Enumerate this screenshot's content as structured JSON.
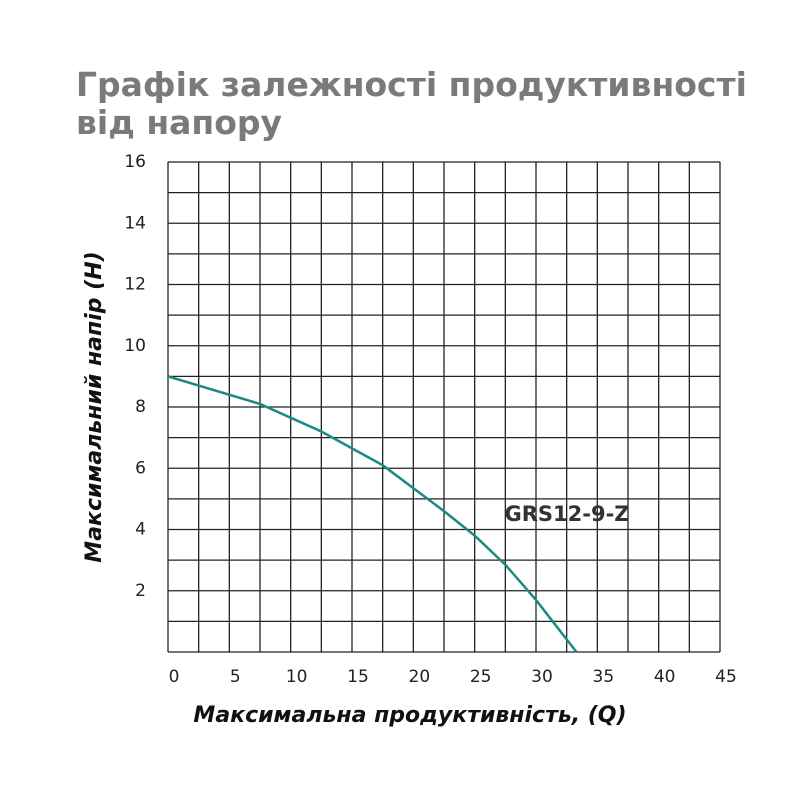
{
  "chart_data": {
    "type": "line",
    "title": "Графік залежності продуктивності від напору",
    "x_label": "Максимальна продуктивність, (Q)",
    "y_label": "Максимальний напір (H)",
    "xlim": [
      0,
      45
    ],
    "ylim": [
      0,
      16
    ],
    "xticks": [
      0,
      5,
      10,
      15,
      20,
      25,
      30,
      35,
      40,
      45
    ],
    "yticks": [
      2,
      4,
      6,
      8,
      10,
      12,
      14,
      16
    ],
    "xgrid": [
      0,
      2.5,
      5,
      7.5,
      10,
      12.5,
      15,
      17.5,
      20,
      22.5,
      25,
      27.5,
      30,
      32.5,
      35,
      37.5,
      40,
      42.5,
      45
    ],
    "ygrid": [
      0,
      1,
      2,
      3,
      4,
      5,
      6,
      7,
      8,
      9,
      10,
      11,
      12,
      13,
      14,
      15,
      16
    ],
    "series": [
      {
        "name": "GRS12-9-Z",
        "color": "#1a8a82",
        "x": [
          0,
          7.5,
          12.5,
          17.5,
          22.5,
          25,
          27.5,
          30,
          33.3
        ],
        "values": [
          9,
          8.1,
          7.2,
          6.1,
          4.6,
          3.8,
          2.85,
          1.7,
          0
        ]
      }
    ]
  }
}
